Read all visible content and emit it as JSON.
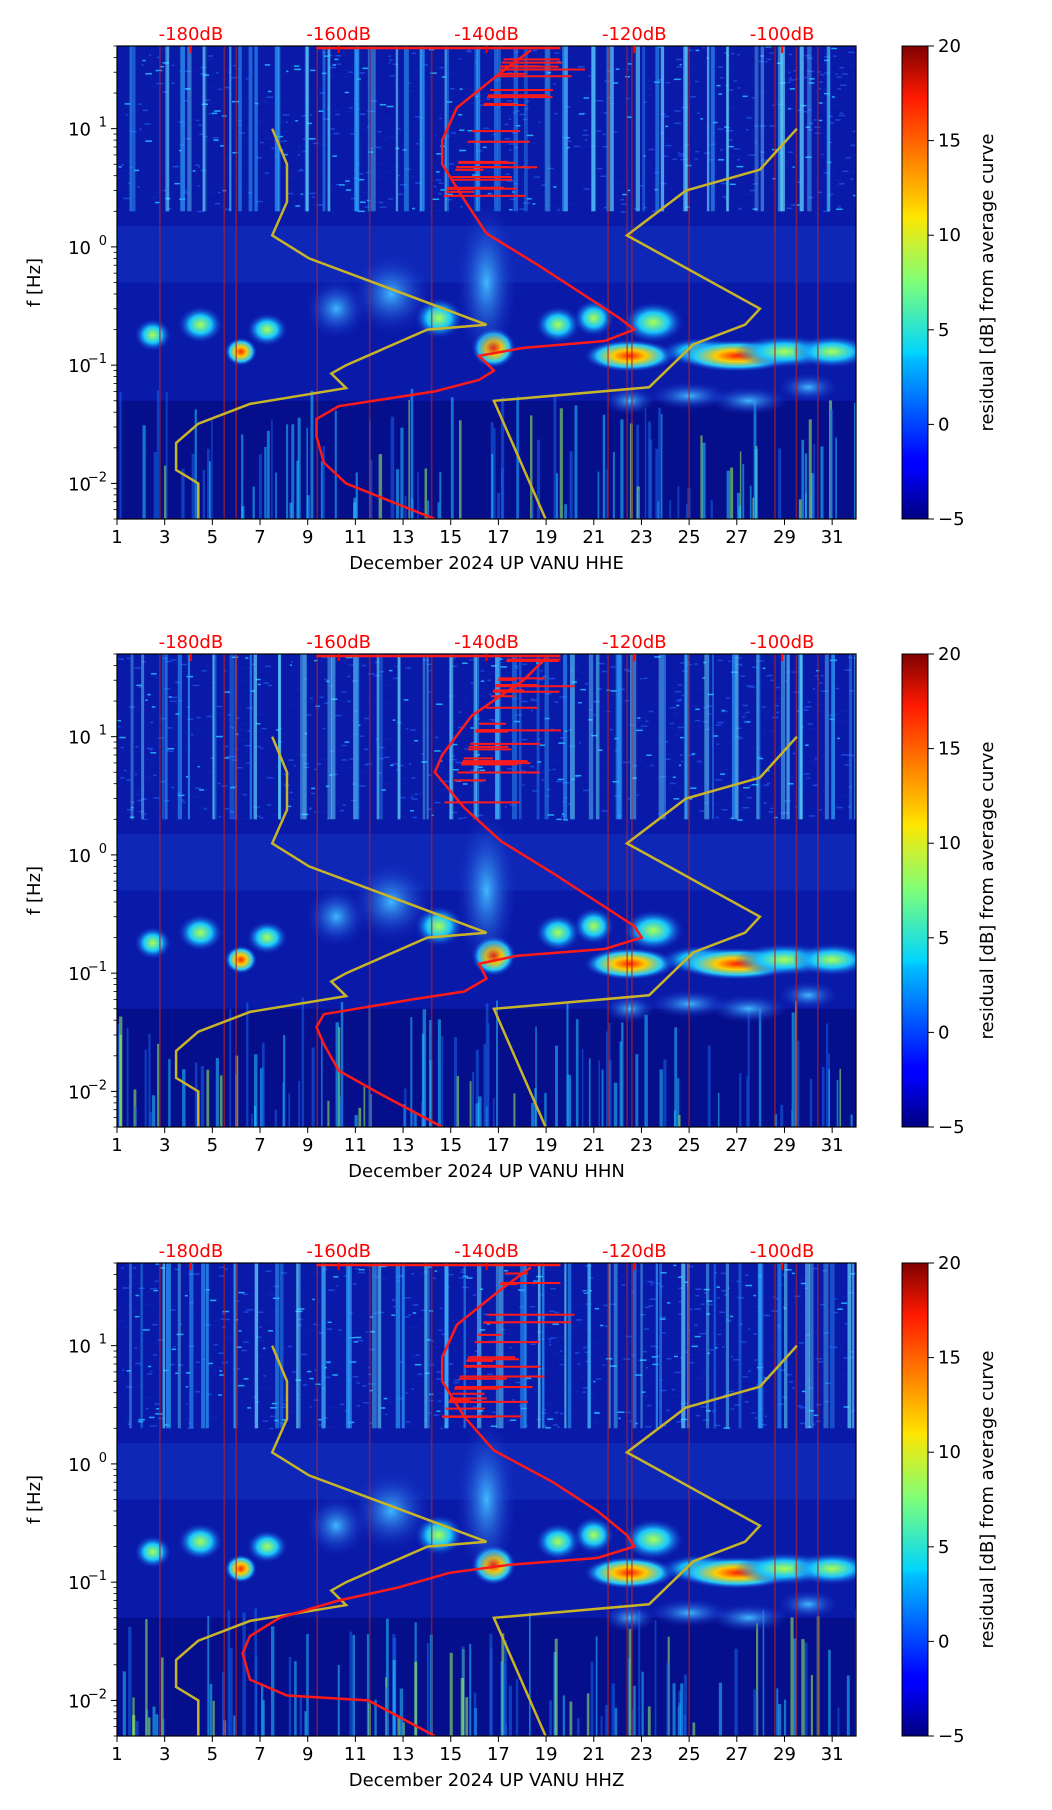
{
  "figure": {
    "description_free": true,
    "colors": {
      "background_low": "#00008b",
      "vertical_streak_warm": "#b22222",
      "average_curve": "#ff1a1a",
      "model_curve": "#c8b428",
      "top_db_labels": "#ff0000",
      "text": "#000000"
    }
  },
  "chart_data": [
    {
      "type": "heatmap",
      "subtype": "spectrogram residual",
      "xlabel": "December 2024 UP VANU  HHE",
      "ylabel": "f [Hz]",
      "x_ticks": [
        1,
        3,
        5,
        7,
        9,
        11,
        13,
        15,
        17,
        19,
        21,
        23,
        25,
        27,
        29,
        31
      ],
      "xlim": [
        1,
        32
      ],
      "y_scale": "log",
      "ylim": [
        0.005,
        50
      ],
      "y_ticks": [
        {
          "value": 0.01,
          "base": "10",
          "exp": "−2"
        },
        {
          "value": 0.1,
          "base": "10",
          "exp": "−1"
        },
        {
          "value": 1,
          "base": "10",
          "exp": "0"
        },
        {
          "value": 10,
          "base": "10",
          "exp": "1"
        }
      ],
      "top_axis_labels": [
        "-180dB",
        "-160dB",
        "-140dB",
        "-120dB",
        "-100dB"
      ],
      "top_axis_positions_db": [
        -180,
        -160,
        -140,
        -120,
        -100
      ],
      "top_axis_range_db": [
        -190,
        -90
      ],
      "colorbar": {
        "label": "residual [dB] from average curve",
        "ticks": [
          -5,
          0,
          5,
          10,
          15,
          20
        ],
        "range": [
          -5,
          20
        ],
        "colormap": "jet"
      },
      "highlight_bands_hz": [
        0.13
      ],
      "average_curve_db_vs_freq": [
        [
          -134,
          46
        ],
        [
          -138,
          30
        ],
        [
          -144,
          15
        ],
        [
          -146,
          8
        ],
        [
          -146,
          5
        ],
        [
          -143,
          2.5
        ],
        [
          -140,
          1.3
        ],
        [
          -133,
          0.7
        ],
        [
          -127,
          0.4
        ],
        [
          -122,
          0.25
        ],
        [
          -120,
          0.2
        ],
        [
          -124,
          0.16
        ],
        [
          -135,
          0.14
        ],
        [
          -141,
          0.12
        ],
        [
          -139,
          0.09
        ],
        [
          -141,
          0.075
        ],
        [
          -147,
          0.06
        ],
        [
          -160,
          0.045
        ],
        [
          -163,
          0.035
        ],
        [
          -163,
          0.025
        ],
        [
          -162,
          0.015
        ],
        [
          -159,
          0.01
        ],
        [
          -147,
          0.005
        ]
      ],
      "model_curve_db_vs_freq": [
        [
          -179,
          0.005
        ],
        [
          -179,
          0.01
        ],
        [
          -182,
          0.013
        ],
        [
          -182,
          0.022
        ],
        [
          -179,
          0.032
        ],
        [
          -172,
          0.047
        ],
        [
          -159,
          0.064
        ],
        [
          -161,
          0.085
        ],
        [
          -159,
          0.1
        ],
        [
          -148,
          0.2
        ],
        [
          -140,
          0.22
        ],
        [
          -164,
          0.8
        ],
        [
          -169,
          1.25
        ],
        [
          -167,
          2.4
        ],
        [
          -167,
          5
        ],
        [
          -169,
          10
        ]
      ],
      "model_curve2_db_vs_freq": [
        [
          -132,
          0.005
        ],
        [
          -139,
          0.05
        ],
        [
          -118,
          0.065
        ],
        [
          -112,
          0.15
        ],
        [
          -105,
          0.22
        ],
        [
          -103,
          0.3
        ],
        [
          -121,
          1.25
        ],
        [
          -113,
          3
        ],
        [
          -103,
          4.5
        ],
        [
          -98,
          10
        ]
      ]
    },
    {
      "type": "heatmap",
      "subtype": "spectrogram residual",
      "xlabel": "December 2024 UP VANU  HHN",
      "ylabel": "f [Hz]",
      "x_ticks": [
        1,
        3,
        5,
        7,
        9,
        11,
        13,
        15,
        17,
        19,
        21,
        23,
        25,
        27,
        29,
        31
      ],
      "xlim": [
        1,
        32
      ],
      "y_scale": "log",
      "ylim": [
        0.005,
        50
      ],
      "y_ticks": [
        {
          "value": 0.01,
          "base": "10",
          "exp": "−2"
        },
        {
          "value": 0.1,
          "base": "10",
          "exp": "−1"
        },
        {
          "value": 1,
          "base": "10",
          "exp": "0"
        },
        {
          "value": 10,
          "base": "10",
          "exp": "1"
        }
      ],
      "top_axis_labels": [
        "-180dB",
        "-160dB",
        "-140dB",
        "-120dB",
        "-100dB"
      ],
      "top_axis_positions_db": [
        -180,
        -160,
        -140,
        -120,
        -100
      ],
      "top_axis_range_db": [
        -190,
        -90
      ],
      "colorbar": {
        "label": "residual [dB] from average curve",
        "ticks": [
          -5,
          0,
          5,
          10,
          15,
          20
        ],
        "range": [
          -5,
          20
        ],
        "colormap": "jet"
      },
      "average_curve_db_vs_freq": [
        [
          -132,
          46
        ],
        [
          -135,
          30
        ],
        [
          -142,
          15
        ],
        [
          -146,
          7
        ],
        [
          -147,
          5
        ],
        [
          -143,
          2.5
        ],
        [
          -138,
          1.3
        ],
        [
          -131,
          0.7
        ],
        [
          -125,
          0.4
        ],
        [
          -120,
          0.25
        ],
        [
          -119,
          0.2
        ],
        [
          -124,
          0.16
        ],
        [
          -136,
          0.14
        ],
        [
          -141,
          0.12
        ],
        [
          -140,
          0.09
        ],
        [
          -143,
          0.07
        ],
        [
          -150,
          0.06
        ],
        [
          -162,
          0.045
        ],
        [
          -163,
          0.035
        ],
        [
          -162,
          0.025
        ],
        [
          -160,
          0.015
        ],
        [
          -155,
          0.01
        ],
        [
          -146,
          0.005
        ]
      ],
      "model_curve_db_vs_freq": [
        [
          -179,
          0.005
        ],
        [
          -179,
          0.01
        ],
        [
          -182,
          0.013
        ],
        [
          -182,
          0.022
        ],
        [
          -179,
          0.032
        ],
        [
          -172,
          0.047
        ],
        [
          -159,
          0.064
        ],
        [
          -161,
          0.085
        ],
        [
          -159,
          0.1
        ],
        [
          -148,
          0.2
        ],
        [
          -140,
          0.22
        ],
        [
          -164,
          0.8
        ],
        [
          -169,
          1.25
        ],
        [
          -167,
          2.4
        ],
        [
          -167,
          5
        ],
        [
          -169,
          10
        ]
      ],
      "model_curve2_db_vs_freq": [
        [
          -132,
          0.005
        ],
        [
          -139,
          0.05
        ],
        [
          -118,
          0.065
        ],
        [
          -112,
          0.15
        ],
        [
          -105,
          0.22
        ],
        [
          -103,
          0.3
        ],
        [
          -121,
          1.25
        ],
        [
          -113,
          3
        ],
        [
          -103,
          4.5
        ],
        [
          -98,
          10
        ]
      ]
    },
    {
      "type": "heatmap",
      "subtype": "spectrogram residual",
      "xlabel": "December 2024 UP VANU  HHZ",
      "ylabel": "f [Hz]",
      "x_ticks": [
        1,
        3,
        5,
        7,
        9,
        11,
        13,
        15,
        17,
        19,
        21,
        23,
        25,
        27,
        29,
        31
      ],
      "xlim": [
        1,
        32
      ],
      "y_scale": "log",
      "ylim": [
        0.005,
        50
      ],
      "y_ticks": [
        {
          "value": 0.01,
          "base": "10",
          "exp": "−2"
        },
        {
          "value": 0.1,
          "base": "10",
          "exp": "−1"
        },
        {
          "value": 1,
          "base": "10",
          "exp": "0"
        },
        {
          "value": 10,
          "base": "10",
          "exp": "1"
        }
      ],
      "top_axis_labels": [
        "-180dB",
        "-160dB",
        "-140dB",
        "-120dB",
        "-100dB"
      ],
      "top_axis_positions_db": [
        -180,
        -160,
        -140,
        -120,
        -100
      ],
      "top_axis_range_db": [
        -190,
        -90
      ],
      "colorbar": {
        "label": "residual [dB] from average curve",
        "ticks": [
          -5,
          0,
          5,
          10,
          15,
          20
        ],
        "range": [
          -5,
          20
        ],
        "colormap": "jet"
      },
      "average_curve_db_vs_freq": [
        [
          -134,
          46
        ],
        [
          -138,
          30
        ],
        [
          -144,
          15
        ],
        [
          -146,
          8
        ],
        [
          -146,
          5
        ],
        [
          -143,
          2.5
        ],
        [
          -139,
          1.3
        ],
        [
          -131,
          0.7
        ],
        [
          -125,
          0.4
        ],
        [
          -121,
          0.25
        ],
        [
          -120,
          0.2
        ],
        [
          -125,
          0.16
        ],
        [
          -137,
          0.14
        ],
        [
          -145,
          0.12
        ],
        [
          -152,
          0.09
        ],
        [
          -160,
          0.07
        ],
        [
          -168,
          0.05
        ],
        [
          -172,
          0.035
        ],
        [
          -173,
          0.025
        ],
        [
          -172,
          0.015
        ],
        [
          -167,
          0.011
        ],
        [
          -156,
          0.01
        ],
        [
          -147,
          0.005
        ]
      ],
      "model_curve_db_vs_freq": [
        [
          -179,
          0.005
        ],
        [
          -179,
          0.01
        ],
        [
          -182,
          0.013
        ],
        [
          -182,
          0.022
        ],
        [
          -179,
          0.032
        ],
        [
          -172,
          0.047
        ],
        [
          -159,
          0.064
        ],
        [
          -161,
          0.085
        ],
        [
          -159,
          0.1
        ],
        [
          -148,
          0.2
        ],
        [
          -140,
          0.22
        ],
        [
          -164,
          0.8
        ],
        [
          -169,
          1.25
        ],
        [
          -167,
          2.4
        ],
        [
          -167,
          5
        ],
        [
          -169,
          10
        ]
      ],
      "model_curve2_db_vs_freq": [
        [
          -132,
          0.005
        ],
        [
          -139,
          0.05
        ],
        [
          -118,
          0.065
        ],
        [
          -112,
          0.15
        ],
        [
          -105,
          0.22
        ],
        [
          -103,
          0.3
        ],
        [
          -121,
          1.25
        ],
        [
          -113,
          3
        ],
        [
          -103,
          4.5
        ],
        [
          -98,
          10
        ]
      ]
    }
  ]
}
